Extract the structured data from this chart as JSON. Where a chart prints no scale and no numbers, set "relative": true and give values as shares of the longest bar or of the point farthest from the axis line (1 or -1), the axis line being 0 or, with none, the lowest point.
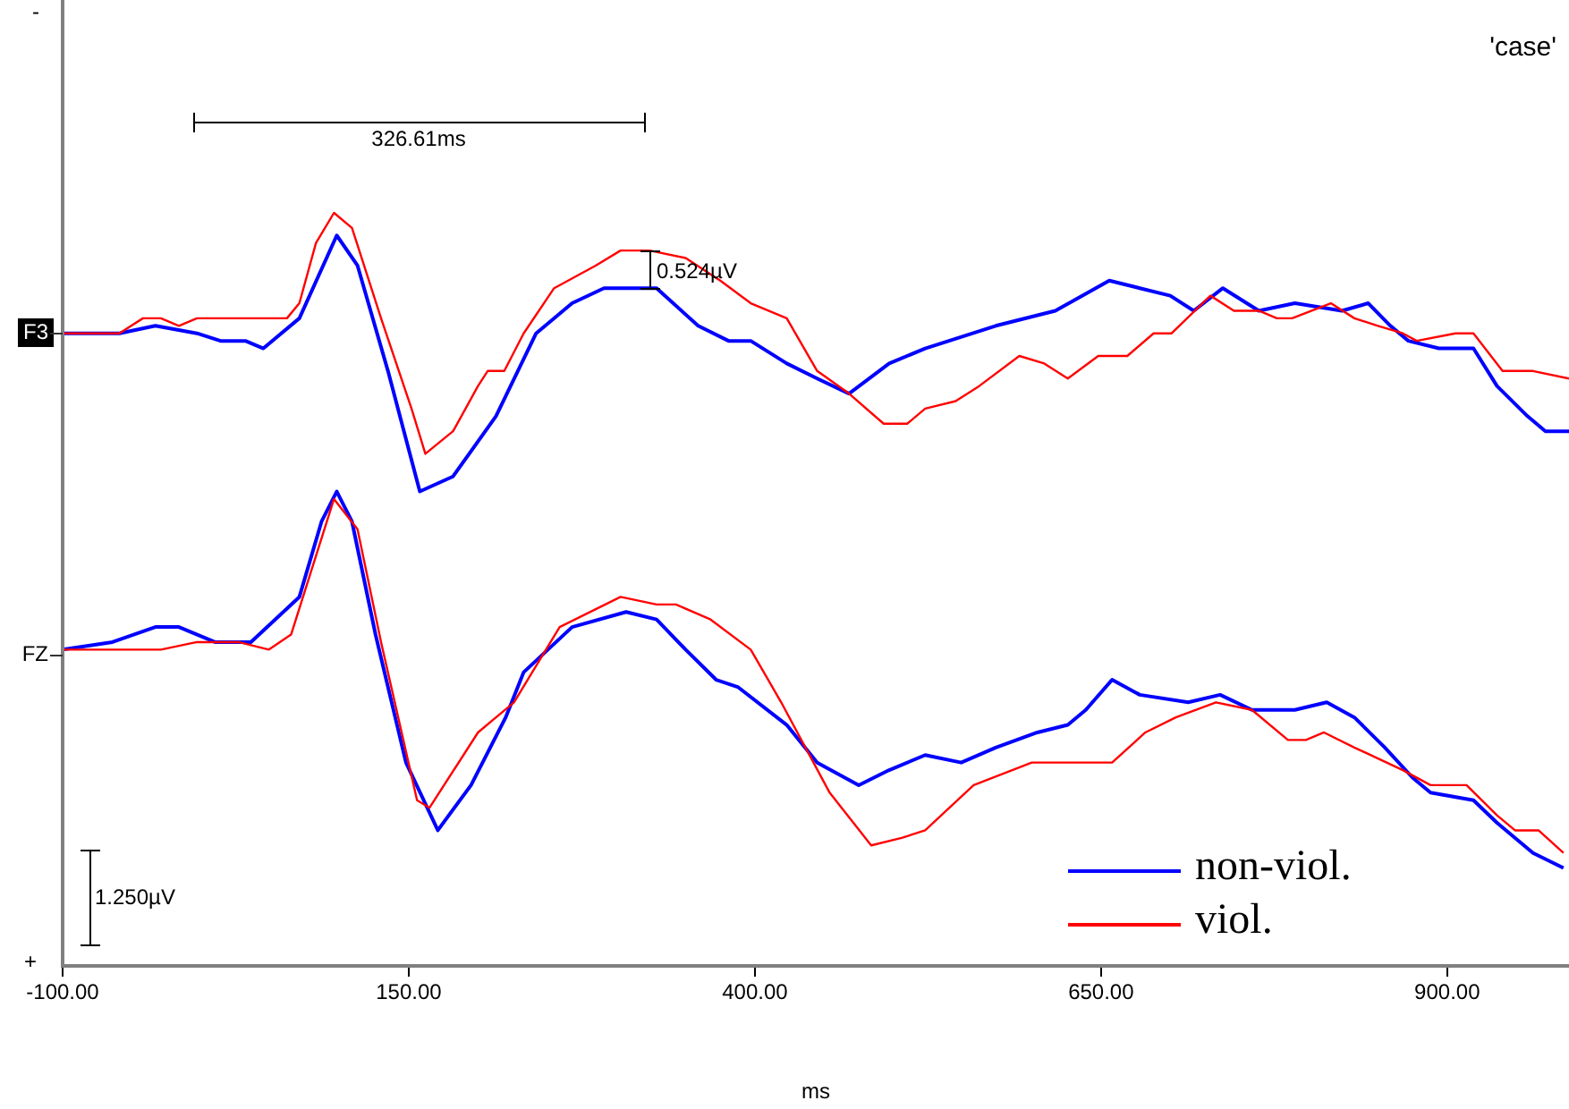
{
  "chart_data": {
    "type": "line",
    "xlabel": "ms",
    "relative": true,
    "tick_labels": "x",
    "grid": false,
    "marker": "none",
    "legend": "bottom right",
    "xlim": [
      -100,
      988
    ],
    "xticks": [
      {
        "value": -100,
        "label": "-100.00"
      },
      {
        "value": 150,
        "label": "150.00"
      },
      {
        "value": 400,
        "label": "400.00"
      },
      {
        "value": 650,
        "label": "650.00"
      },
      {
        "value": 900,
        "label": "900.00"
      }
    ],
    "annotations": [
      "'case'",
      "326.61ms",
      "0.524µV",
      "-",
      "F3",
      "FZ",
      "1.250µV",
      "+"
    ],
    "series": [
      {
        "color": "#0000ff",
        "x": [
          -100,
          -94,
          -59,
          -33,
          -3,
          14,
          32,
          45,
          71,
          98,
          113,
          135,
          158,
          182,
          213,
          242,
          268,
          291,
          329,
          359,
          381,
          397,
          423,
          445,
          468,
          497,
          523,
          574,
          617,
          656,
          678,
          700,
          717,
          738,
          764,
          790,
          824,
          843,
          859,
          872,
          894,
          919,
          936,
          958,
          971,
          988
        ],
        "values": [
          0.84,
          0.84,
          0.84,
          0.85,
          0.84,
          0.83,
          0.83,
          0.82,
          0.86,
          0.97,
          0.93,
          0.79,
          0.63,
          0.65,
          0.73,
          0.84,
          0.88,
          0.9,
          0.9,
          0.85,
          0.83,
          0.83,
          0.8,
          0.78,
          0.76,
          0.8,
          0.82,
          0.85,
          0.87,
          0.91,
          0.9,
          0.89,
          0.87,
          0.9,
          0.87,
          0.88,
          0.87,
          0.88,
          0.85,
          0.83,
          0.82,
          0.82,
          0.77,
          0.73,
          0.71,
          0.71
        ]
      },
      {
        "color": "#ff0000",
        "x": [
          -100,
          -59,
          -42,
          -29,
          -16,
          -3,
          27,
          62,
          71,
          83,
          96,
          109,
          130,
          152,
          162,
          182,
          200,
          207,
          219,
          233,
          255,
          285,
          303,
          324,
          350,
          375,
          397,
          423,
          445,
          468,
          493,
          510,
          523,
          545,
          562,
          591,
          609,
          626,
          648,
          669,
          688,
          701,
          729,
          746,
          764,
          777,
          788,
          816,
          833,
          850,
          868,
          878,
          906,
          919,
          940,
          962,
          988
        ],
        "values": [
          0.84,
          0.84,
          0.86,
          0.86,
          0.85,
          0.86,
          0.86,
          0.86,
          0.88,
          0.96,
          1.0,
          0.98,
          0.86,
          0.74,
          0.68,
          0.71,
          0.77,
          0.79,
          0.79,
          0.84,
          0.9,
          0.93,
          0.95,
          0.95,
          0.94,
          0.91,
          0.88,
          0.86,
          0.79,
          0.76,
          0.72,
          0.72,
          0.74,
          0.75,
          0.77,
          0.81,
          0.8,
          0.78,
          0.81,
          0.81,
          0.84,
          0.84,
          0.89,
          0.87,
          0.87,
          0.86,
          0.86,
          0.88,
          0.86,
          0.85,
          0.84,
          0.83,
          0.84,
          0.84,
          0.79,
          0.79,
          0.78
        ]
      },
      {
        "name": "non-viol.",
        "color": "#0000ff",
        "x": [
          -100,
          -64,
          -33,
          -16,
          10,
          36,
          71,
          87,
          98,
          109,
          126,
          148,
          171,
          195,
          220,
          233,
          268,
          307,
          329,
          350,
          372,
          388,
          423,
          445,
          475,
          497,
          523,
          549,
          574,
          604,
          626,
          639,
          658,
          678,
          713,
          736,
          759,
          790,
          813,
          833,
          855,
          875,
          888,
          919,
          936,
          962,
          984
        ],
        "values": [
          0.42,
          0.43,
          0.45,
          0.45,
          0.43,
          0.43,
          0.49,
          0.59,
          0.63,
          0.59,
          0.44,
          0.27,
          0.18,
          0.24,
          0.33,
          0.39,
          0.45,
          0.47,
          0.46,
          0.42,
          0.38,
          0.37,
          0.32,
          0.27,
          0.24,
          0.26,
          0.28,
          0.27,
          0.29,
          0.31,
          0.32,
          0.34,
          0.38,
          0.36,
          0.35,
          0.36,
          0.34,
          0.34,
          0.35,
          0.33,
          0.29,
          0.25,
          0.23,
          0.22,
          0.19,
          0.15,
          0.13
        ]
      },
      {
        "name": "viol.",
        "color": "#ff0000",
        "x": [
          -100,
          -29,
          -3,
          27,
          49,
          65,
          96,
          113,
          130,
          156,
          165,
          200,
          213,
          226,
          259,
          303,
          329,
          343,
          368,
          397,
          419,
          454,
          484,
          506,
          523,
          558,
          600,
          626,
          658,
          682,
          704,
          733,
          759,
          785,
          798,
          811,
          833,
          868,
          888,
          914,
          936,
          949,
          966,
          984
        ],
        "values": [
          0.42,
          0.42,
          0.43,
          0.43,
          0.42,
          0.44,
          0.62,
          0.58,
          0.43,
          0.22,
          0.21,
          0.31,
          0.33,
          0.35,
          0.45,
          0.49,
          0.48,
          0.48,
          0.46,
          0.42,
          0.35,
          0.23,
          0.16,
          0.17,
          0.18,
          0.24,
          0.27,
          0.27,
          0.27,
          0.31,
          0.33,
          0.35,
          0.34,
          0.3,
          0.3,
          0.31,
          0.29,
          0.26,
          0.24,
          0.24,
          0.2,
          0.18,
          0.18,
          0.15
        ]
      }
    ]
  }
}
